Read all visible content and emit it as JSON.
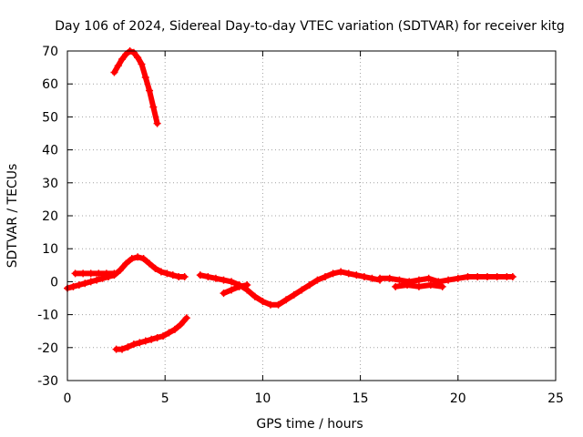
{
  "chart_data": {
    "type": "scatter",
    "title": "Day 106 of 2024, Sidereal Day-to-day VTEC variation (SDTVAR) for receiver kitg",
    "xlabel": "GPS time / hours",
    "ylabel": "SDTVAR / TECUs",
    "xlim": [
      0,
      25
    ],
    "ylim": [
      -30,
      70
    ],
    "xticks": [
      0,
      5,
      10,
      15,
      20,
      25
    ],
    "yticks": [
      -30,
      -20,
      -10,
      0,
      10,
      20,
      30,
      40,
      50,
      60,
      70
    ],
    "grid": true,
    "legend": "none",
    "series_color": "#ff0000",
    "series": [
      {
        "name": "upper-arc",
        "x": [
          2.4,
          2.6,
          2.8,
          3.0,
          3.2,
          3.4,
          3.6,
          3.8,
          4.0,
          4.2,
          4.4,
          4.6
        ],
        "y": [
          63.5,
          65.5,
          67.5,
          69,
          70,
          69.5,
          68,
          66,
          62,
          58,
          53,
          48
        ]
      },
      {
        "name": "lower-arc",
        "x": [
          2.5,
          2.8,
          3.1,
          3.4,
          3.7,
          4.0,
          4.3,
          4.6,
          4.9,
          5.2,
          5.5,
          5.8,
          6.1
        ],
        "y": [
          -20.5,
          -20.5,
          -19.8,
          -19,
          -18.5,
          -18,
          -17.5,
          -17,
          -16.5,
          -15.5,
          -14.5,
          -13,
          -11
        ]
      },
      {
        "name": "near-zero-a",
        "x": [
          0.0,
          0.3,
          0.6,
          0.9,
          1.2,
          1.5,
          1.8,
          2.1,
          2.4,
          2.7,
          3.0,
          3.3,
          3.6,
          3.9,
          4.2,
          4.5,
          4.8,
          5.1,
          5.4,
          5.7,
          6.0
        ],
        "y": [
          -2,
          -1.5,
          -1,
          -0.5,
          0,
          0.5,
          1,
          1.5,
          2,
          3.5,
          5.5,
          7,
          7.5,
          7,
          5.5,
          4,
          3,
          2.5,
          2,
          1.5,
          1.5
        ]
      },
      {
        "name": "near-zero-a-upper",
        "x": [
          0.4,
          0.8,
          1.2,
          1.6,
          2.0,
          2.4
        ],
        "y": [
          2.5,
          2.5,
          2.5,
          2.5,
          2.5,
          2.5
        ]
      },
      {
        "name": "near-zero-b",
        "x": [
          6.8,
          7.2,
          7.6,
          8.0,
          8.4,
          8.8,
          9.2,
          9.6,
          10.0,
          10.4,
          10.8,
          11.2,
          11.6,
          12.0,
          12.4,
          12.8,
          13.2,
          13.6,
          14.0,
          14.4,
          14.8,
          15.2,
          15.6,
          16.0
        ],
        "y": [
          2,
          1.5,
          1,
          0.5,
          0,
          -1,
          -2.5,
          -4.5,
          -6,
          -7,
          -7,
          -5.5,
          -4,
          -2.5,
          -1,
          0.5,
          1.5,
          2.5,
          3,
          2.5,
          2,
          1.5,
          1,
          0.5
        ]
      },
      {
        "name": "near-zero-b-lower",
        "x": [
          8.0,
          8.4,
          8.8,
          9.2
        ],
        "y": [
          -3.5,
          -2.5,
          -1.5,
          -1
        ]
      },
      {
        "name": "near-zero-c",
        "x": [
          16.0,
          16.5,
          17.0,
          17.5,
          18.0,
          18.5,
          19.0,
          19.5,
          20.0,
          20.5,
          21.0,
          21.5,
          22.0,
          22.5,
          22.8
        ],
        "y": [
          1,
          1,
          0.5,
          0,
          0.5,
          1,
          0,
          0.5,
          1,
          1.5,
          1.5,
          1.5,
          1.5,
          1.5,
          1.5
        ]
      },
      {
        "name": "near-zero-c-lower",
        "x": [
          16.8,
          17.4,
          18.0,
          18.6,
          19.2
        ],
        "y": [
          -1.5,
          -1,
          -1.5,
          -1,
          -1.5
        ]
      }
    ]
  }
}
